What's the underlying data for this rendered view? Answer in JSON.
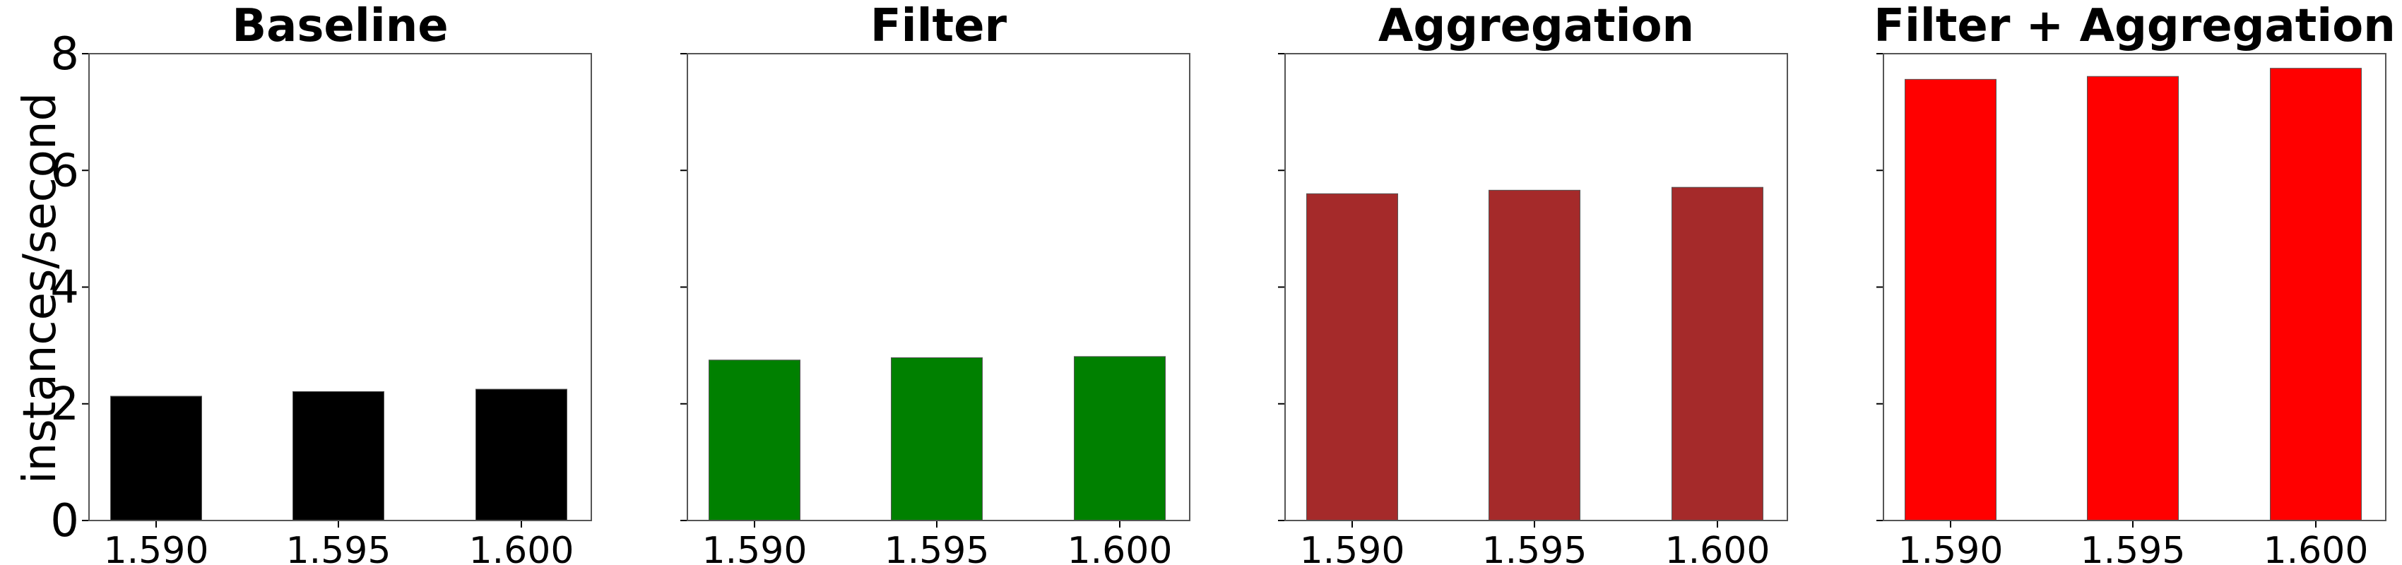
{
  "chart_data": {
    "type": "bar",
    "ylabel": "instances/second",
    "ylim": [
      0,
      8
    ],
    "yticks": [
      0,
      2,
      4,
      6,
      8
    ],
    "sharey": true,
    "grid": false,
    "panels": [
      {
        "title": "Baseline",
        "color": "#000000",
        "categories": [
          "1.590",
          "1.595",
          "1.600"
        ],
        "values": [
          2.13,
          2.21,
          2.25
        ]
      },
      {
        "title": "Filter",
        "color": "#008000",
        "categories": [
          "1.590",
          "1.595",
          "1.600"
        ],
        "values": [
          2.75,
          2.79,
          2.81
        ]
      },
      {
        "title": "Aggregation",
        "color": "#a52a2a",
        "categories": [
          "1.590",
          "1.595",
          "1.600"
        ],
        "values": [
          5.6,
          5.66,
          5.71
        ]
      },
      {
        "title": "Filter + Aggregation",
        "color": "#ff0000",
        "categories": [
          "1.590",
          "1.595",
          "1.600"
        ],
        "values": [
          7.56,
          7.61,
          7.75
        ]
      }
    ]
  }
}
